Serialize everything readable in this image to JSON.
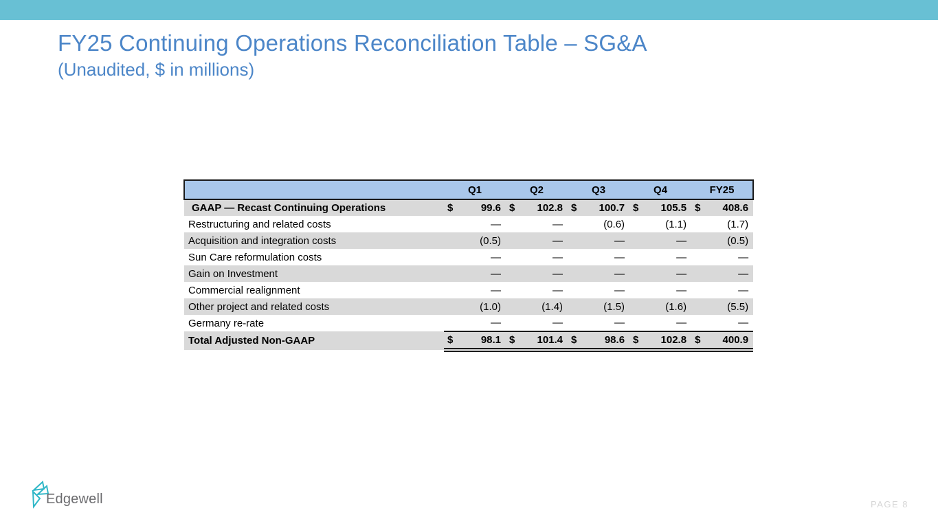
{
  "header": {
    "title": "FY25 Continuing Operations Reconciliation Table – SG&A",
    "subtitle": "(Unaudited, $ in millions)"
  },
  "table": {
    "dollar_symbol": "$",
    "columns": [
      "Q1",
      "Q2",
      "Q3",
      "Q4",
      "FY25"
    ],
    "rows": [
      {
        "label": "GAAP — Recast Continuing Operations",
        "bold": true,
        "dollar": true,
        "indent": true,
        "values": [
          "99.6",
          "102.8",
          "100.7",
          "105.5",
          "408.6"
        ]
      },
      {
        "label": "Restructuring and related costs",
        "values": [
          "—",
          "—",
          "(0.6)",
          "(1.1)",
          "(1.7)"
        ]
      },
      {
        "label": "Acquisition and integration costs",
        "values": [
          "(0.5)",
          "—",
          "—",
          "—",
          "(0.5)"
        ]
      },
      {
        "label": "Sun Care reformulation costs",
        "values": [
          "—",
          "—",
          "—",
          "—",
          "—"
        ]
      },
      {
        "label": "Gain on Investment",
        "values": [
          "—",
          "—",
          "—",
          "—",
          "—"
        ]
      },
      {
        "label": "Commercial realignment",
        "values": [
          "—",
          "—",
          "—",
          "—",
          "—"
        ]
      },
      {
        "label": "Other project and related costs",
        "values": [
          "(1.0)",
          "(1.4)",
          "(1.5)",
          "(1.6)",
          "(5.5)"
        ]
      },
      {
        "label": "Germany re-rate",
        "values": [
          "—",
          "—",
          "—",
          "—",
          "—"
        ]
      },
      {
        "label": "Total Adjusted Non-GAAP",
        "bold": true,
        "dollar": true,
        "total": true,
        "values": [
          "98.1",
          "101.4",
          "98.6",
          "102.8",
          "400.9"
        ]
      }
    ]
  },
  "footer": {
    "logo_text": "Edgewell",
    "page_label": "PAGE 8"
  },
  "colors": {
    "top_bar": "#68c0d4",
    "title_blue": "#4c86c8",
    "table_header_bg": "#a9c7ea",
    "row_alt_bg": "#d9d9d9",
    "logo_teal": "#2fb7c7",
    "logo_text_gray": "#6b6b6e",
    "page_number_gray": "#d6d6d6"
  }
}
